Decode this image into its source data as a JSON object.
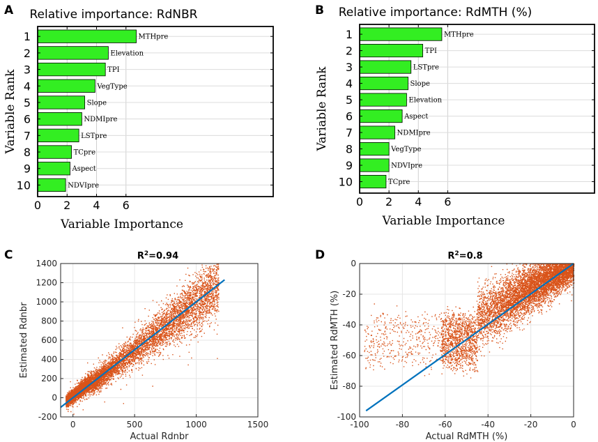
{
  "chart_data": [
    {
      "panel": "A",
      "type": "bar",
      "orientation": "horizontal",
      "title": "Relative importance: RdNBR",
      "xlabel": "Variable Importance",
      "ylabel": "Variable Rank",
      "xlim": [
        0,
        16
      ],
      "xticks": [
        0,
        2,
        4,
        6
      ],
      "ranks": [
        1,
        2,
        3,
        4,
        5,
        6,
        7,
        8,
        9,
        10
      ],
      "categories": [
        "MTHpre",
        "Elevation",
        "TPI",
        "VegType",
        "Slope",
        "NDMIpre",
        "LSTpre",
        "TCpre",
        "Aspect",
        "NDVIpre"
      ],
      "values": [
        6.7,
        4.8,
        4.6,
        3.9,
        3.2,
        3.0,
        2.8,
        2.3,
        2.2,
        1.9
      ],
      "bar_color": "#33ee22",
      "grid": true
    },
    {
      "panel": "B",
      "type": "bar",
      "orientation": "horizontal",
      "title": "Relative importance: RdMTH (%)",
      "xlabel": "Variable Importance",
      "ylabel": "Variable Rank",
      "xlim": [
        0,
        16
      ],
      "xticks": [
        0,
        2,
        4,
        6
      ],
      "ranks": [
        1,
        2,
        3,
        4,
        5,
        6,
        7,
        8,
        9,
        10
      ],
      "categories": [
        "MTHpre",
        "TPI",
        "LSTpre",
        "Slope",
        "Elevation",
        "Aspect",
        "NDMIpre",
        "VegType",
        "NDVIpre",
        "TCpre"
      ],
      "values": [
        5.6,
        4.3,
        3.5,
        3.3,
        3.2,
        2.9,
        2.4,
        2.0,
        2.0,
        1.8
      ],
      "bar_color": "#33ee22",
      "grid": true
    },
    {
      "panel": "C",
      "type": "scatter",
      "title_main": "R",
      "title_sup": "2",
      "title_rest": "=0.94",
      "xlabel": "Actual Rdnbr",
      "ylabel": "Estimated Rdnbr",
      "xlim": [
        -100,
        1500
      ],
      "ylim": [
        -200,
        1400
      ],
      "xticks": [
        0,
        500,
        1000,
        1500
      ],
      "yticks": [
        -200,
        0,
        200,
        400,
        600,
        800,
        1000,
        1200,
        1400
      ],
      "fit_line": [
        [
          -100,
          -100
        ],
        [
          1230,
          1230
        ]
      ],
      "point_color": "#d95319",
      "line_color": "#0072bd",
      "grid": true
    },
    {
      "panel": "D",
      "type": "scatter",
      "title_main": "R",
      "title_sup": "2",
      "title_rest": "=0.8",
      "xlabel": "Actual RdMTH (%)",
      "ylabel": "Estimated RdMTH (%)",
      "xlim": [
        -100,
        0
      ],
      "ylim": [
        -100,
        0
      ],
      "xticks": [
        -100,
        -80,
        -60,
        -40,
        -20,
        0
      ],
      "yticks": [
        -100,
        -80,
        -60,
        -40,
        -20,
        0
      ],
      "fit_line": [
        [
          -97,
          -96
        ],
        [
          0,
          0
        ]
      ],
      "point_color": "#d95319",
      "line_color": "#0072bd",
      "grid": true
    }
  ],
  "panel_labels": [
    "A",
    "B",
    "C",
    "D"
  ]
}
